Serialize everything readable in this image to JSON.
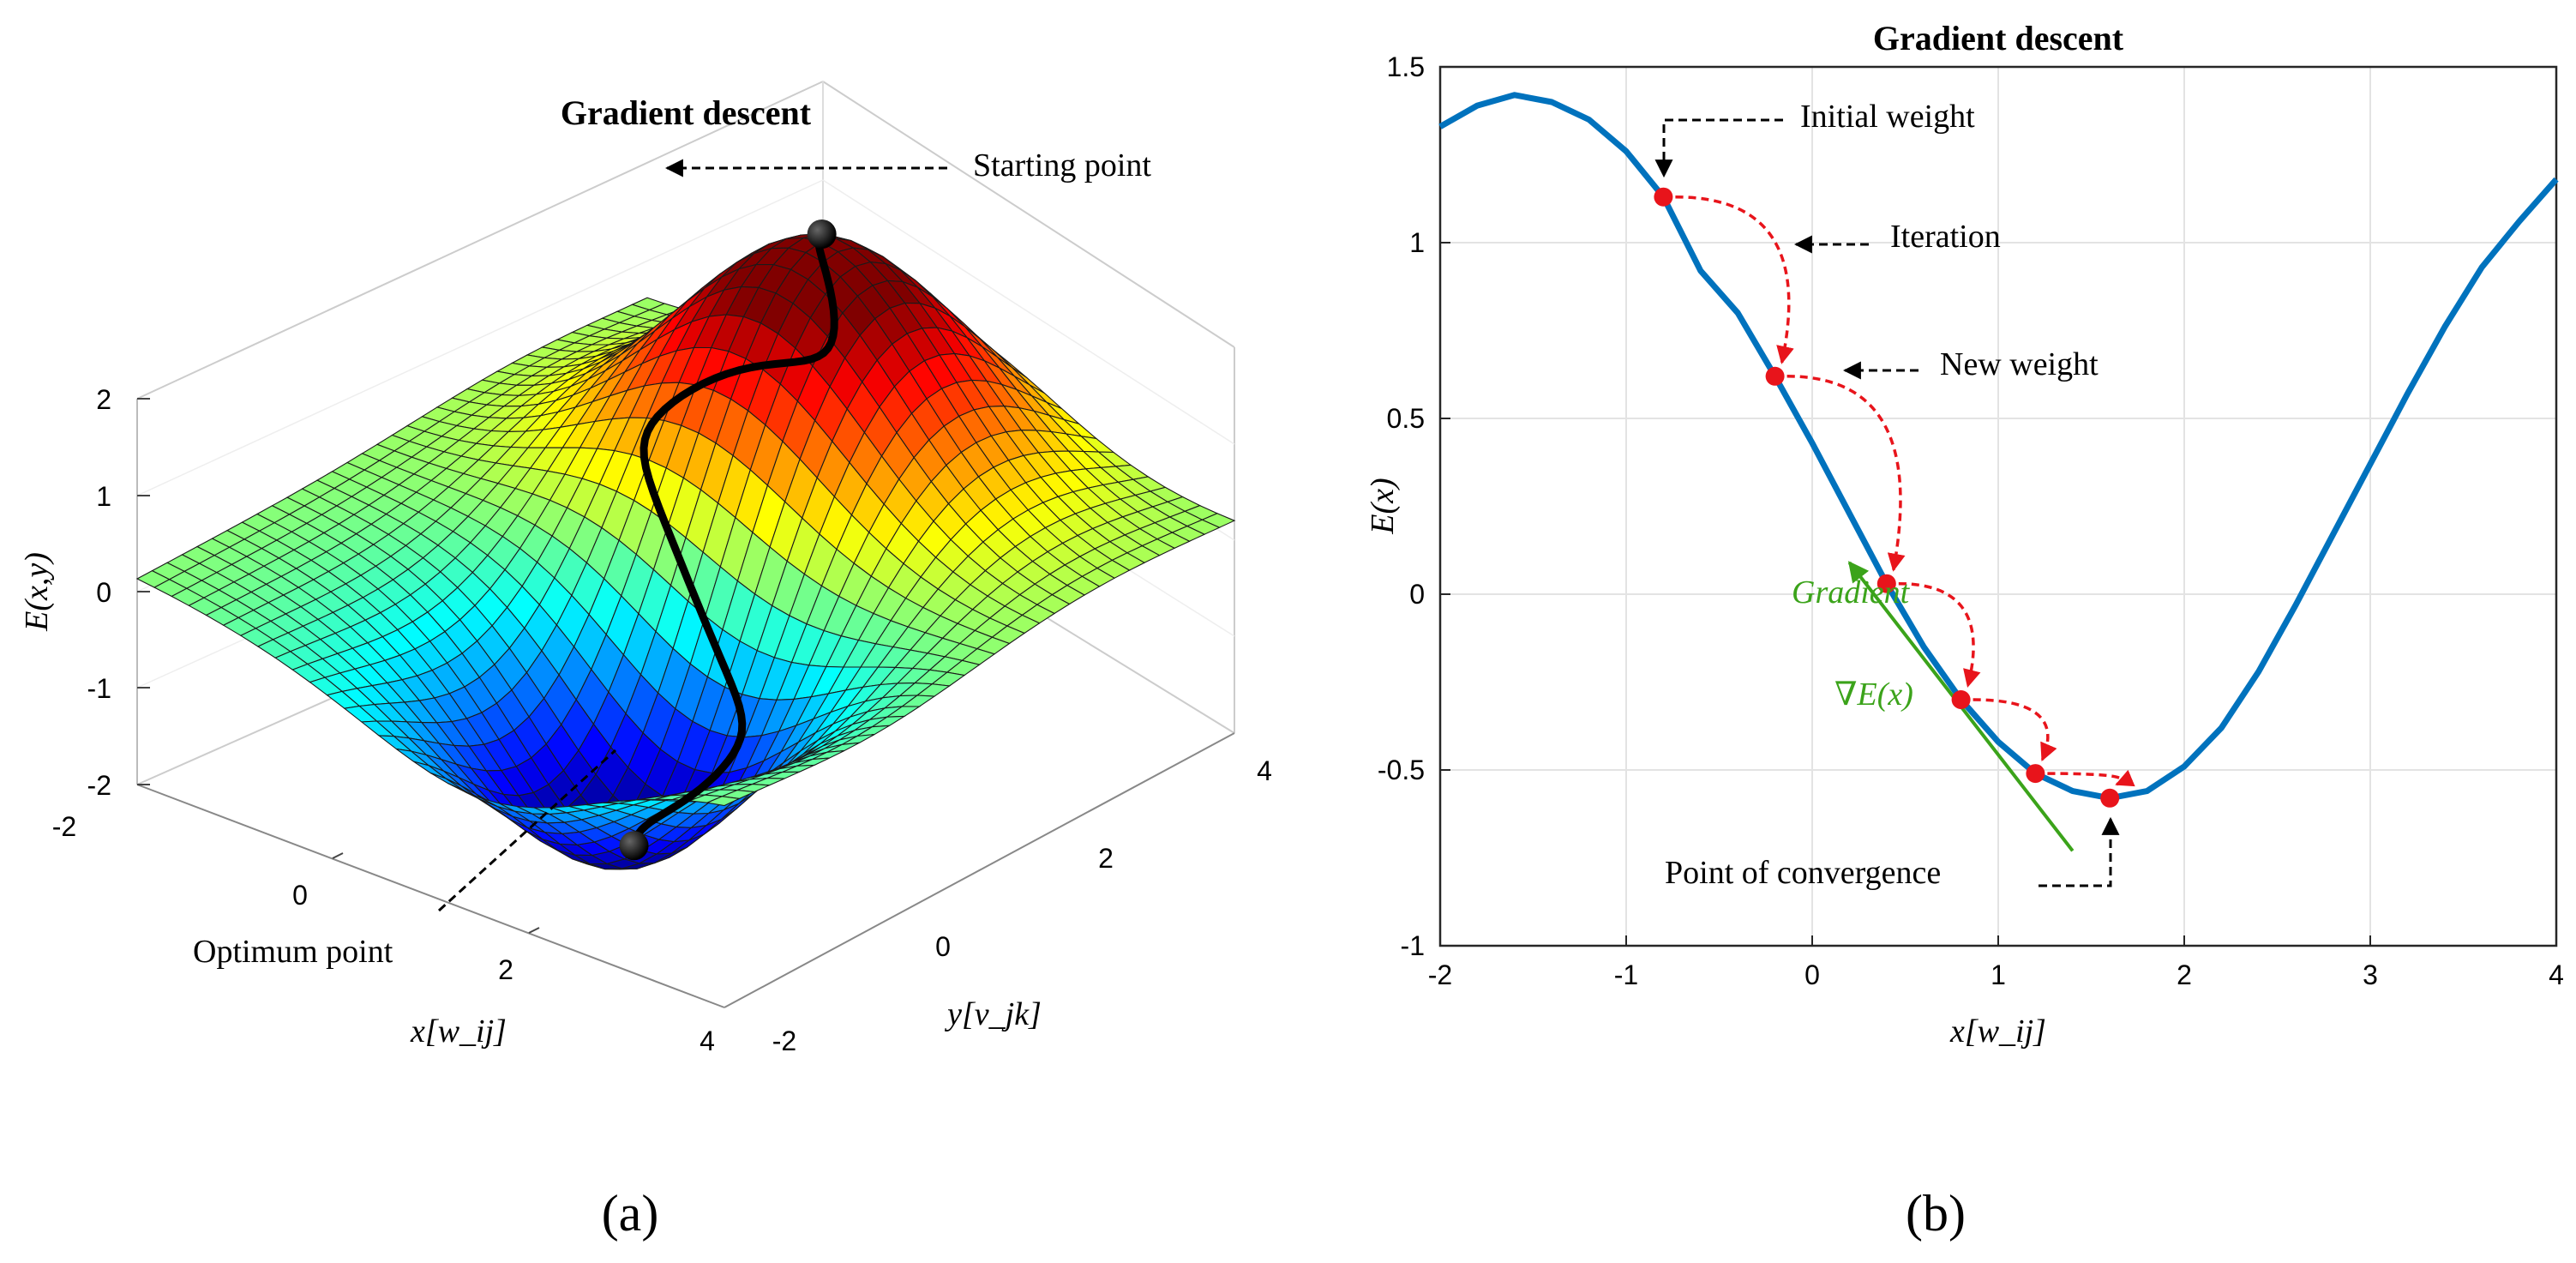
{
  "chart_data": [
    {
      "type": "surface3d",
      "title": "Gradient descent",
      "xlabel": "x[w_ij]",
      "ylabel": "y[v_jk]",
      "zlabel": "E(x,y)",
      "xlim": [
        -2,
        4
      ],
      "ylim": [
        -2,
        4
      ],
      "zlim": [
        -2,
        2
      ],
      "x_ticks": [
        "-2",
        "0",
        "2",
        "4"
      ],
      "y_ticks": [
        "-2",
        "0",
        "2",
        "4"
      ],
      "z_ticks": [
        "2",
        "1",
        "0",
        "-1",
        "-2"
      ],
      "colormap": "jet",
      "path_color": "#000000",
      "annotations": {
        "start": "Starting point",
        "optimum": "Optimum point"
      },
      "caption": "(a)"
    },
    {
      "type": "line",
      "title": "Gradient descent",
      "xlabel": "x[w_ij]",
      "ylabel": "E(x)",
      "xlim": [
        -2,
        4
      ],
      "ylim": [
        -1,
        1.5
      ],
      "x_ticks": [
        "-2",
        "-1",
        "0",
        "1",
        "2",
        "3",
        "4"
      ],
      "y_ticks": [
        "1.5",
        "1",
        "0.5",
        "0",
        "-0.5",
        "-1"
      ],
      "grid": true,
      "series": [
        {
          "name": "E(x)",
          "color": "#0072BD",
          "x": [
            -2.0,
            -1.8,
            -1.6,
            -1.4,
            -1.2,
            -1.0,
            -0.8,
            -0.6,
            -0.4,
            -0.2,
            0.0,
            0.2,
            0.4,
            0.6,
            0.8,
            1.0,
            1.2,
            1.4,
            1.6,
            1.8,
            2.0,
            2.2,
            2.4,
            2.6,
            2.8,
            3.0,
            3.2,
            3.4,
            3.6,
            3.8,
            4.0
          ],
          "y": [
            1.33,
            1.39,
            1.42,
            1.4,
            1.35,
            1.26,
            1.13,
            0.92,
            0.8,
            0.62,
            0.43,
            0.23,
            0.03,
            -0.15,
            -0.3,
            -0.42,
            -0.51,
            -0.56,
            -0.58,
            -0.56,
            -0.49,
            -0.38,
            -0.22,
            -0.03,
            0.17,
            0.37,
            0.57,
            0.76,
            0.93,
            1.06,
            1.18
          ]
        }
      ],
      "iterations": {
        "color": "#E8141B",
        "x": [
          -0.8,
          -0.2,
          0.4,
          0.8,
          1.2,
          1.6
        ],
        "y": [
          1.13,
          0.62,
          0.03,
          -0.3,
          -0.51,
          -0.58
        ]
      },
      "gradient_line": {
        "color": "#3BA31A",
        "from": [
          1.4,
          -0.73
        ],
        "to": [
          0.2,
          0.09
        ],
        "label": "Gradient",
        "label2": "∇E(x)"
      },
      "annotations": {
        "initial": "Initial weight",
        "iteration": "Iteration",
        "new_weight": "New weight",
        "convergence": "Point of convergence"
      },
      "caption": "(b)"
    }
  ]
}
